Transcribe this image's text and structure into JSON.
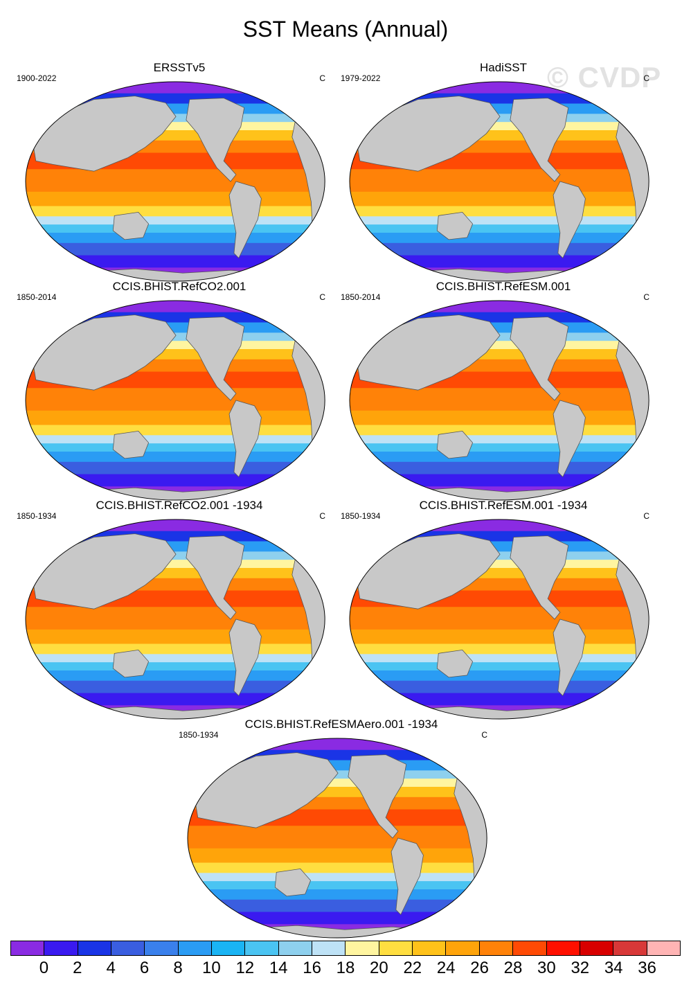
{
  "title": "SST Means (Annual)",
  "watermark": "© CVDP",
  "panels": [
    {
      "title": "ERSSTv5",
      "period": "1900-2022",
      "units": "C"
    },
    {
      "title": "HadiSST",
      "period": "1979-2022",
      "units": "C"
    },
    {
      "title": "CCIS.BHIST.RefCO2.001",
      "period": "1850-2014",
      "units": "C"
    },
    {
      "title": "CCIS.BHIST.RefESM.001",
      "period": "1850-2014",
      "units": "C"
    },
    {
      "title": "CCIS.BHIST.RefCO2.001 -1934",
      "period": "1850-1934",
      "units": "C"
    },
    {
      "title": "CCIS.BHIST.RefESM.001 -1934",
      "period": "1850-1934",
      "units": "C"
    },
    {
      "title": "CCIS.BHIST.RefESMAero.001 -1934",
      "period": "1850-1934",
      "units": "C"
    }
  ],
  "colorbar": {
    "colors": [
      "#8a2be2",
      "#3a1af0",
      "#1a34e6",
      "#3a5ee0",
      "#3a80ec",
      "#2a9cf4",
      "#1ab4f4",
      "#4ac4f2",
      "#8ed0ee",
      "#bee2f6",
      "#fff5a0",
      "#ffde40",
      "#ffc21a",
      "#ffa40a",
      "#ff8208",
      "#ff4a04",
      "#ff1000",
      "#d80000",
      "#d83838",
      "#ffb4b4"
    ],
    "labels": [
      "0",
      "2",
      "4",
      "6",
      "8",
      "10",
      "12",
      "14",
      "16",
      "18",
      "20",
      "22",
      "24",
      "26",
      "28",
      "30",
      "32",
      "34",
      "36"
    ]
  },
  "chart_data": {
    "type": "heatmap",
    "title": "SST Means (Annual)",
    "units": "C",
    "levels": [
      0,
      2,
      4,
      6,
      8,
      10,
      12,
      14,
      16,
      18,
      20,
      22,
      24,
      26,
      28,
      30,
      32,
      34,
      36
    ],
    "maps": [
      {
        "name": "ERSSTv5",
        "period": "1900-2022"
      },
      {
        "name": "HadiSST",
        "period": "1979-2022"
      },
      {
        "name": "CCIS.BHIST.RefCO2.001",
        "period": "1850-2014"
      },
      {
        "name": "CCIS.BHIST.RefESM.001",
        "period": "1850-2014"
      },
      {
        "name": "CCIS.BHIST.RefCO2.001 -1934",
        "period": "1850-1934"
      },
      {
        "name": "CCIS.BHIST.RefESM.001 -1934",
        "period": "1850-1934"
      },
      {
        "name": "CCIS.BHIST.RefESMAero.001 -1934",
        "period": "1850-1934"
      }
    ]
  }
}
